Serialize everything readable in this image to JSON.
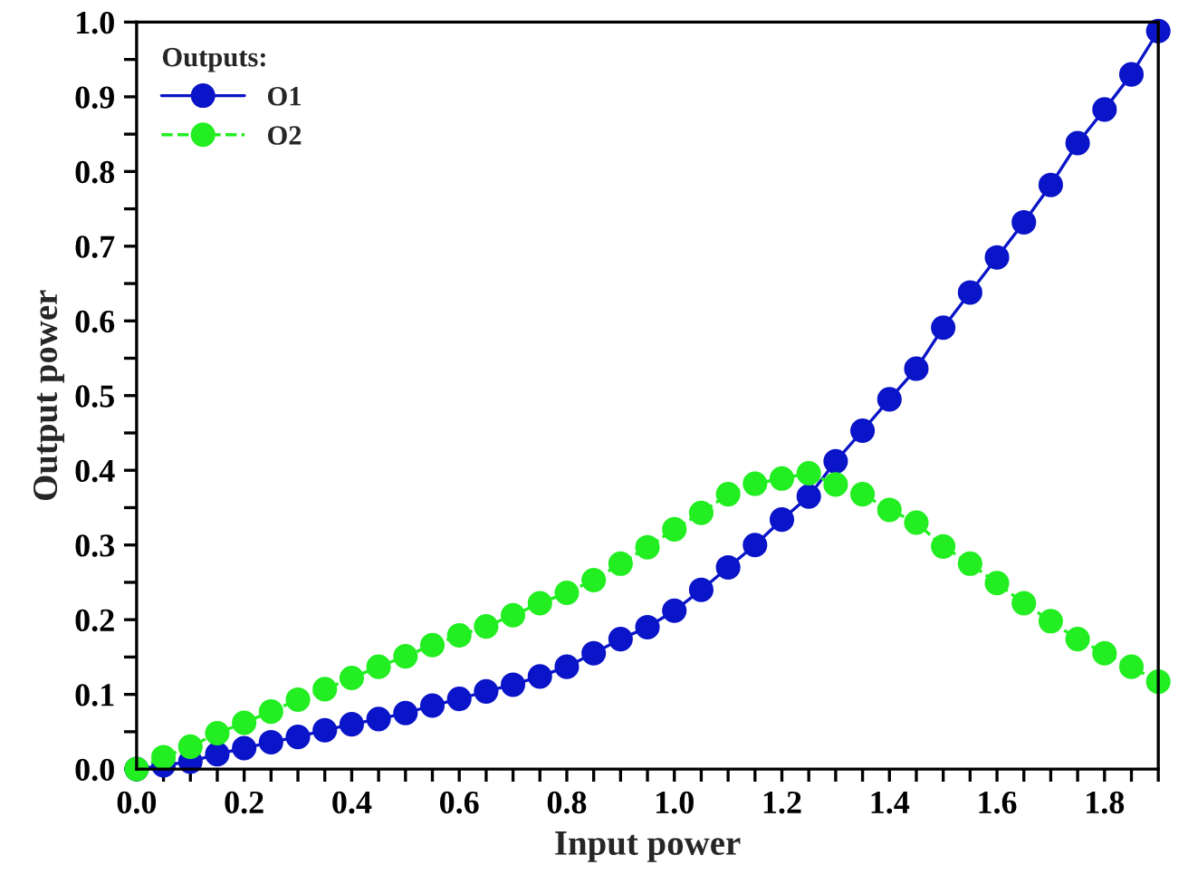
{
  "chart_data": {
    "type": "line",
    "xlabel": "Input power",
    "ylabel": "Output power",
    "legend_title": "Outputs:",
    "legend": "top left",
    "marker": "circle",
    "grid": false,
    "xlim": [
      0,
      1.9
    ],
    "ylim": [
      0,
      1.0
    ],
    "xticks": [
      {
        "value": 0,
        "label": "0.0"
      },
      {
        "value": 0.05,
        "label": null
      },
      {
        "value": 0.1,
        "label": null
      },
      {
        "value": 0.15,
        "label": null
      },
      {
        "value": 0.2,
        "label": "0.2"
      },
      {
        "value": 0.25,
        "label": null
      },
      {
        "value": 0.3,
        "label": null
      },
      {
        "value": 0.35,
        "label": null
      },
      {
        "value": 0.4,
        "label": "0.4"
      },
      {
        "value": 0.45,
        "label": null
      },
      {
        "value": 0.5,
        "label": null
      },
      {
        "value": 0.55,
        "label": null
      },
      {
        "value": 0.6,
        "label": "0.6"
      },
      {
        "value": 0.65,
        "label": null
      },
      {
        "value": 0.7,
        "label": null
      },
      {
        "value": 0.75,
        "label": null
      },
      {
        "value": 0.8,
        "label": "0.8"
      },
      {
        "value": 0.85,
        "label": null
      },
      {
        "value": 0.9,
        "label": null
      },
      {
        "value": 0.95,
        "label": null
      },
      {
        "value": 1.0,
        "label": "1.0"
      },
      {
        "value": 1.05,
        "label": null
      },
      {
        "value": 1.1,
        "label": null
      },
      {
        "value": 1.15,
        "label": null
      },
      {
        "value": 1.2,
        "label": "1.2"
      },
      {
        "value": 1.25,
        "label": null
      },
      {
        "value": 1.3,
        "label": null
      },
      {
        "value": 1.35,
        "label": null
      },
      {
        "value": 1.4,
        "label": "1.4"
      },
      {
        "value": 1.45,
        "label": null
      },
      {
        "value": 1.5,
        "label": null
      },
      {
        "value": 1.55,
        "label": null
      },
      {
        "value": 1.6,
        "label": "1.6"
      },
      {
        "value": 1.65,
        "label": null
      },
      {
        "value": 1.7,
        "label": null
      },
      {
        "value": 1.75,
        "label": null
      },
      {
        "value": 1.8,
        "label": "1.8"
      },
      {
        "value": 1.85,
        "label": null
      },
      {
        "value": 1.9,
        "label": null
      }
    ],
    "yticks": [
      {
        "value": 0,
        "label": "0.0"
      },
      {
        "value": 0.05,
        "label": null
      },
      {
        "value": 0.1,
        "label": "0.1"
      },
      {
        "value": 0.15,
        "label": null
      },
      {
        "value": 0.2,
        "label": "0.2"
      },
      {
        "value": 0.25,
        "label": null
      },
      {
        "value": 0.3,
        "label": "0.3"
      },
      {
        "value": 0.35,
        "label": null
      },
      {
        "value": 0.4,
        "label": "0.4"
      },
      {
        "value": 0.45,
        "label": null
      },
      {
        "value": 0.5,
        "label": "0.5"
      },
      {
        "value": 0.55,
        "label": null
      },
      {
        "value": 0.6,
        "label": "0.6"
      },
      {
        "value": 0.65,
        "label": null
      },
      {
        "value": 0.7,
        "label": "0.7"
      },
      {
        "value": 0.75,
        "label": null
      },
      {
        "value": 0.8,
        "label": "0.8"
      },
      {
        "value": 0.85,
        "label": null
      },
      {
        "value": 0.9,
        "label": "0.9"
      },
      {
        "value": 0.95,
        "label": null
      },
      {
        "value": 1.0,
        "label": "1.0"
      }
    ],
    "x": [
      0,
      0.05,
      0.1,
      0.15,
      0.2,
      0.25,
      0.3,
      0.35,
      0.4,
      0.45,
      0.5,
      0.55,
      0.6,
      0.65,
      0.7,
      0.75,
      0.8,
      0.85,
      0.9,
      0.95,
      1.0,
      1.05,
      1.1,
      1.15,
      1.2,
      1.25,
      1.3,
      1.35,
      1.4,
      1.45,
      1.5,
      1.55,
      1.6,
      1.65,
      1.7,
      1.75,
      1.8,
      1.85,
      1.9
    ],
    "series": [
      {
        "name": "O1",
        "color": "#0a14c8",
        "line_style": "solid",
        "values": [
          0,
          0.005,
          0.01,
          0.02,
          0.028,
          0.036,
          0.043,
          0.052,
          0.06,
          0.067,
          0.075,
          0.085,
          0.094,
          0.104,
          0.113,
          0.124,
          0.137,
          0.155,
          0.174,
          0.19,
          0.212,
          0.24,
          0.27,
          0.3,
          0.334,
          0.365,
          0.412,
          0.453,
          0.495,
          0.536,
          0.591,
          0.638,
          0.685,
          0.732,
          0.782,
          0.838,
          0.883,
          0.93,
          0.988
        ]
      },
      {
        "name": "O2",
        "color": "#22ee22",
        "line_style": "dashed",
        "values": [
          0,
          0.016,
          0.03,
          0.048,
          0.062,
          0.077,
          0.093,
          0.107,
          0.122,
          0.137,
          0.151,
          0.166,
          0.179,
          0.191,
          0.206,
          0.222,
          0.236,
          0.253,
          0.275,
          0.297,
          0.321,
          0.343,
          0.368,
          0.382,
          0.389,
          0.396,
          0.381,
          0.368,
          0.347,
          0.33,
          0.298,
          0.275,
          0.249,
          0.222,
          0.198,
          0.174,
          0.155,
          0.137,
          0.117
        ]
      }
    ]
  }
}
